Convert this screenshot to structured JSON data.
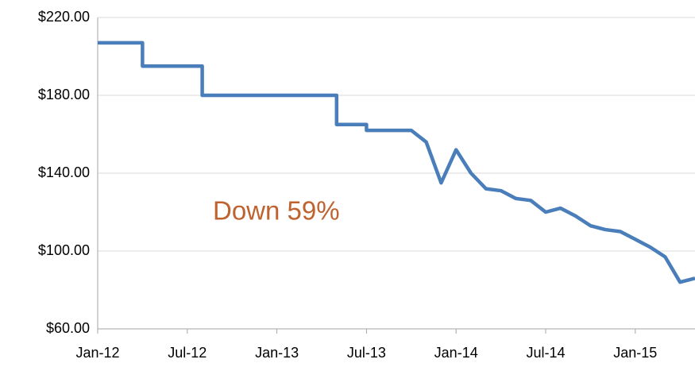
{
  "chart_data": {
    "type": "line",
    "annotation": "Down 59%",
    "x": [
      "2012-01",
      "2012-04",
      "2012-04",
      "2012-08",
      "2012-08",
      "2013-05",
      "2013-05",
      "2013-07",
      "2013-07",
      "2013-10",
      "2013-11",
      "2013-12",
      "2014-01",
      "2014-02",
      "2014-03",
      "2014-04",
      "2014-05",
      "2014-06",
      "2014-07",
      "2014-08",
      "2014-09",
      "2014-10",
      "2014-11",
      "2014-12",
      "2015-01",
      "2015-02",
      "2015-03",
      "2015-04",
      "2015-05"
    ],
    "series": [
      {
        "color": "#4a7ebb",
        "values": [
          207,
          207,
          195,
          195,
          180,
          180,
          165,
          165,
          162,
          162,
          156,
          135,
          152,
          140,
          132,
          131,
          127,
          126,
          120,
          122,
          118,
          113,
          111,
          110,
          106,
          102,
          97,
          84,
          86
        ]
      }
    ],
    "xlim": [
      "2012-01",
      "2015-05"
    ],
    "xticks": [
      {
        "value": "2012-01",
        "label": "Jan-12"
      },
      {
        "value": "2012-07",
        "label": "Jul-12"
      },
      {
        "value": "2013-01",
        "label": "Jan-13"
      },
      {
        "value": "2013-07",
        "label": "Jul-13"
      },
      {
        "value": "2014-01",
        "label": "Jan-14"
      },
      {
        "value": "2014-07",
        "label": "Jul-14"
      },
      {
        "value": "2015-01",
        "label": "Jan-15"
      }
    ],
    "ylim": [
      60,
      220
    ],
    "yticks": [
      {
        "value": 60,
        "label": "$60.00"
      },
      {
        "value": 100,
        "label": "$100.00"
      },
      {
        "value": 140,
        "label": "$140.00"
      },
      {
        "value": 180,
        "label": "$180.00"
      },
      {
        "value": 220,
        "label": "$220.00"
      }
    ],
    "grid": true,
    "annotation_color": "#c0622f"
  }
}
